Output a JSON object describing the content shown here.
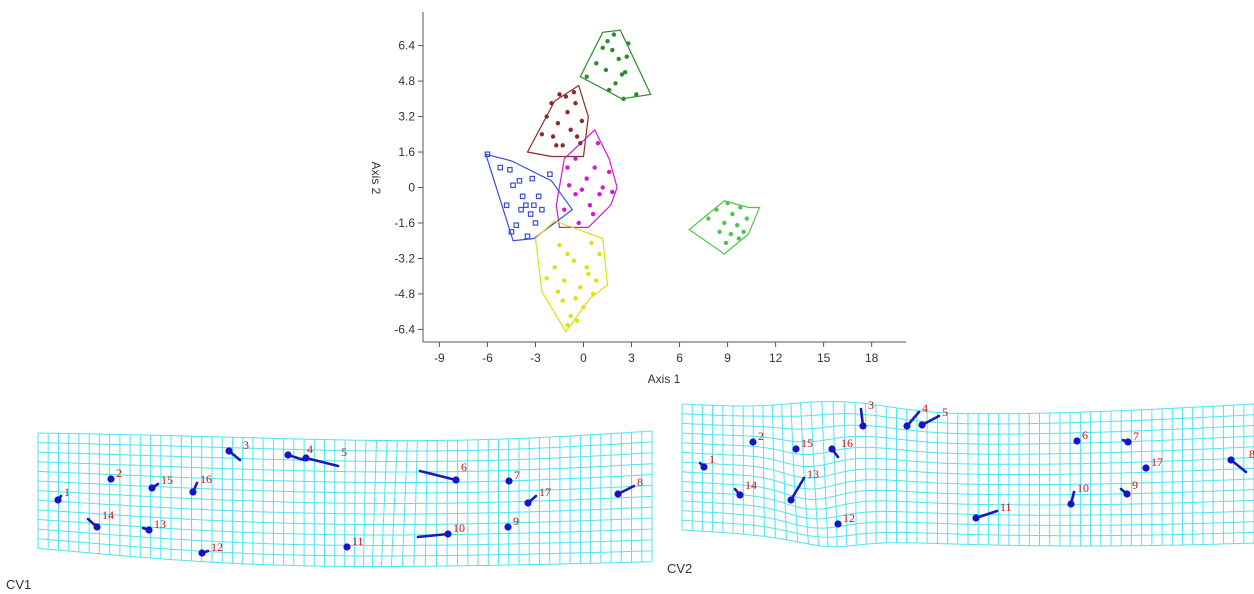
{
  "chart_data": [
    {
      "type": "scatter",
      "title": "",
      "xlabel": "Axis 1",
      "ylabel": "Axis 2",
      "xlim": [
        -10,
        20
      ],
      "ylim": [
        -7.2,
        7.8
      ],
      "xticks": [
        -9,
        -6,
        -3,
        0,
        3,
        6,
        9,
        12,
        15,
        18
      ],
      "yticks": [
        -6.4,
        -4.8,
        -3.2,
        -1.6,
        0,
        1.6,
        3.2,
        4.8,
        6.4
      ],
      "xtick_labels": [
        "-9",
        "-6",
        "-3",
        "0",
        "3",
        "6",
        "9",
        "12",
        "15",
        "18"
      ],
      "ytick_labels": [
        "-6.4",
        "-4.8",
        "-3.2",
        "-1.6",
        "0",
        "1.6",
        "3.2",
        "4.8",
        "6.4"
      ],
      "grid": false,
      "convex_hulls": true,
      "series": [
        {
          "color": "#2e8b2e",
          "marker": "circle",
          "points": [
            [
              0.2,
              5.0
            ],
            [
              0.8,
              5.6
            ],
            [
              1.2,
              6.3
            ],
            [
              1.5,
              6.6
            ],
            [
              1.8,
              6.2
            ],
            [
              2.2,
              5.8
            ],
            [
              1.4,
              5.3
            ],
            [
              2.6,
              5.2
            ],
            [
              2.8,
              6.5
            ],
            [
              1.9,
              6.9
            ],
            [
              2.4,
              5.1
            ],
            [
              2.0,
              4.7
            ],
            [
              1.6,
              4.4
            ],
            [
              2.5,
              4.0
            ],
            [
              3.3,
              4.2
            ],
            [
              2.7,
              5.9
            ]
          ],
          "hull": [
            [
              -0.2,
              5.0
            ],
            [
              1.2,
              7.0
            ],
            [
              2.3,
              7.1
            ],
            [
              4.2,
              4.2
            ],
            [
              2.4,
              4.0
            ]
          ]
        },
        {
          "color": "#8b2b2b",
          "marker": "circle",
          "points": [
            [
              -2.0,
              3.8
            ],
            [
              -1.5,
              4.2
            ],
            [
              -1.0,
              3.4
            ],
            [
              -0.8,
              2.6
            ],
            [
              -1.6,
              2.9
            ],
            [
              -0.4,
              2.3
            ],
            [
              -1.9,
              2.3
            ],
            [
              -1.3,
              1.9
            ],
            [
              -0.1,
              3.0
            ],
            [
              -0.6,
              4.3
            ],
            [
              -2.3,
              3.2
            ],
            [
              -0.2,
              2.0
            ],
            [
              -1.1,
              4.1
            ],
            [
              -0.5,
              3.8
            ],
            [
              -1.7,
              1.9
            ],
            [
              -2.6,
              2.4
            ]
          ],
          "hull": [
            [
              -3.5,
              1.6
            ],
            [
              -1.8,
              3.9
            ],
            [
              -0.3,
              4.6
            ],
            [
              0.3,
              3.2
            ],
            [
              0.0,
              1.4
            ],
            [
              -2.0,
              1.4
            ]
          ]
        },
        {
          "color": "#d418d4",
          "marker": "circle",
          "points": [
            [
              -1.0,
              0.9
            ],
            [
              -0.5,
              1.3
            ],
            [
              0.2,
              0.4
            ],
            [
              0.7,
              0.9
            ],
            [
              1.2,
              0.0
            ],
            [
              1.0,
              -0.3
            ],
            [
              0.4,
              -0.8
            ],
            [
              -0.5,
              -0.3
            ],
            [
              -0.9,
              0.1
            ],
            [
              -1.2,
              -1.0
            ],
            [
              -0.3,
              -1.6
            ],
            [
              0.6,
              -1.2
            ],
            [
              1.8,
              -0.2
            ],
            [
              1.6,
              0.7
            ],
            [
              -0.1,
              -0.1
            ],
            [
              0.9,
              2.0
            ]
          ],
          "hull": [
            [
              -1.2,
              1.3
            ],
            [
              0.7,
              2.6
            ],
            [
              1.6,
              1.3
            ],
            [
              2.1,
              0.0
            ],
            [
              1.7,
              -0.8
            ],
            [
              0.3,
              -1.8
            ],
            [
              -1.5,
              -1.8
            ],
            [
              -1.7,
              -0.8
            ]
          ]
        },
        {
          "color": "#3a4fd4",
          "marker": "square",
          "points": [
            [
              -6.0,
              1.5
            ],
            [
              -5.2,
              0.9
            ],
            [
              -4.6,
              0.8
            ],
            [
              -4.4,
              0.1
            ],
            [
              -4.0,
              0.3
            ],
            [
              -3.8,
              -0.4
            ],
            [
              -3.6,
              -0.8
            ],
            [
              -3.9,
              -1.0
            ],
            [
              -3.3,
              -1.2
            ],
            [
              -2.8,
              -0.4
            ],
            [
              -3.0,
              -1.6
            ],
            [
              -4.2,
              -1.7
            ],
            [
              -4.5,
              -2.0
            ],
            [
              -3.5,
              -2.2
            ],
            [
              -3.2,
              0.4
            ],
            [
              -2.6,
              -1.0
            ],
            [
              -4.8,
              -0.8
            ],
            [
              -2.1,
              0.6
            ],
            [
              -3.1,
              -0.8
            ]
          ],
          "hull": [
            [
              -6.1,
              1.5
            ],
            [
              -4.5,
              1.2
            ],
            [
              -2.0,
              0.3
            ],
            [
              -0.7,
              -1.0
            ],
            [
              -3.1,
              -2.3
            ],
            [
              -4.4,
              -2.4
            ]
          ]
        },
        {
          "color": "#e0e00e",
          "marker": "circle",
          "points": [
            [
              -1.5,
              -2.6
            ],
            [
              -1.0,
              -3.0
            ],
            [
              -0.6,
              -3.3
            ],
            [
              0.2,
              -3.6
            ],
            [
              0.5,
              -2.5
            ],
            [
              1.0,
              -3.0
            ],
            [
              0.8,
              -4.2
            ],
            [
              -0.2,
              -4.5
            ],
            [
              -1.2,
              -4.2
            ],
            [
              -1.8,
              -3.6
            ],
            [
              -0.5,
              -5.0
            ],
            [
              -1.3,
              -5.1
            ],
            [
              0.0,
              -5.4
            ],
            [
              -0.8,
              -5.8
            ],
            [
              0.6,
              -4.8
            ],
            [
              -1.6,
              -4.7
            ],
            [
              -0.4,
              -6.0
            ],
            [
              -1.0,
              -6.2
            ],
            [
              0.3,
              -3.9
            ],
            [
              -2.3,
              -4.1
            ]
          ],
          "hull": [
            [
              -3.0,
              -2.3
            ],
            [
              -1.8,
              -1.5
            ],
            [
              1.2,
              -2.3
            ],
            [
              1.5,
              -4.4
            ],
            [
              0.4,
              -5.0
            ],
            [
              -1.1,
              -6.5
            ],
            [
              -2.6,
              -4.7
            ]
          ]
        },
        {
          "color": "#4fc44f",
          "marker": "circle",
          "points": [
            [
              7.8,
              -1.4
            ],
            [
              8.3,
              -1.0
            ],
            [
              8.8,
              -1.6
            ],
            [
              9.3,
              -1.2
            ],
            [
              9.8,
              -0.9
            ],
            [
              9.6,
              -1.7
            ],
            [
              9.2,
              -2.1
            ],
            [
              8.5,
              -2.0
            ],
            [
              10.2,
              -1.4
            ],
            [
              9.0,
              -0.7
            ],
            [
              8.9,
              -2.5
            ],
            [
              9.7,
              -2.3
            ],
            [
              10.0,
              -2.0
            ]
          ],
          "hull": [
            [
              6.6,
              -1.9
            ],
            [
              8.8,
              -0.6
            ],
            [
              10.3,
              -0.9
            ],
            [
              11.0,
              -0.9
            ],
            [
              10.3,
              -2.1
            ],
            [
              8.8,
              -3.0
            ]
          ]
        }
      ]
    },
    {
      "type": "deformation-grid",
      "title": "CV1",
      "landmarks": [
        {
          "label": "1",
          "x": 58,
          "y": 500,
          "dx": 3,
          "dy": -4
        },
        {
          "label": "2",
          "x": 111,
          "y": 479,
          "dx": 0,
          "dy": 0
        },
        {
          "label": "3",
          "x": 229,
          "y": 451,
          "dx": 11,
          "dy": 9
        },
        {
          "label": "4",
          "x": 288,
          "y": 455,
          "dx": 16,
          "dy": 5
        },
        {
          "label": "5",
          "x": 306,
          "y": 458,
          "dx": 32,
          "dy": 8
        },
        {
          "label": "6",
          "x": 456,
          "y": 480,
          "dx": -36,
          "dy": -9
        },
        {
          "label": "7",
          "x": 509,
          "y": 481,
          "dx": 0,
          "dy": 0
        },
        {
          "label": "8",
          "x": 618,
          "y": 494,
          "dx": 16,
          "dy": -8
        },
        {
          "label": "9",
          "x": 508,
          "y": 527,
          "dx": 0,
          "dy": 0
        },
        {
          "label": "10",
          "x": 448,
          "y": 534,
          "dx": -30,
          "dy": 3
        },
        {
          "label": "11",
          "x": 347,
          "y": 547,
          "dx": 0,
          "dy": 0
        },
        {
          "label": "12",
          "x": 202,
          "y": 553,
          "dx": 6,
          "dy": -2
        },
        {
          "label": "13",
          "x": 149,
          "y": 530,
          "dx": -6,
          "dy": -2
        },
        {
          "label": "14",
          "x": 97,
          "y": 527,
          "dx": -9,
          "dy": -8
        },
        {
          "label": "15",
          "x": 152,
          "y": 488,
          "dx": 6,
          "dy": -4
        },
        {
          "label": "16",
          "x": 193,
          "y": 492,
          "dx": 4,
          "dy": -9
        },
        {
          "label": "17",
          "x": 528,
          "y": 503,
          "dx": 8,
          "dy": -7
        }
      ]
    },
    {
      "type": "deformation-grid",
      "title": "CV2",
      "landmarks": [
        {
          "label": "1",
          "x": 704,
          "y": 467,
          "dx": -4,
          "dy": -4
        },
        {
          "label": "2",
          "x": 753,
          "y": 442,
          "dx": 0,
          "dy": 0
        },
        {
          "label": "3",
          "x": 863,
          "y": 426,
          "dx": -2,
          "dy": -17
        },
        {
          "label": "4",
          "x": 907,
          "y": 426,
          "dx": 12,
          "dy": -14
        },
        {
          "label": "5",
          "x": 922,
          "y": 425,
          "dx": 17,
          "dy": -9
        },
        {
          "label": "6",
          "x": 1077,
          "y": 441,
          "dx": 0,
          "dy": 0
        },
        {
          "label": "7",
          "x": 1128,
          "y": 442,
          "dx": -5,
          "dy": -2
        },
        {
          "label": "8",
          "x": 1231,
          "y": 460,
          "dx": 15,
          "dy": 12
        },
        {
          "label": "9",
          "x": 1127,
          "y": 494,
          "dx": -6,
          "dy": -5
        },
        {
          "label": "10",
          "x": 1071,
          "y": 504,
          "dx": 3,
          "dy": -12
        },
        {
          "label": "11",
          "x": 976,
          "y": 518,
          "dx": 21,
          "dy": -7
        },
        {
          "label": "12",
          "x": 838,
          "y": 524,
          "dx": 0,
          "dy": 0
        },
        {
          "label": "13",
          "x": 791,
          "y": 500,
          "dx": 13,
          "dy": -22
        },
        {
          "label": "14",
          "x": 740,
          "y": 495,
          "dx": -5,
          "dy": -6
        },
        {
          "label": "15",
          "x": 796,
          "y": 449,
          "dx": 0,
          "dy": 0
        },
        {
          "label": "16",
          "x": 832,
          "y": 449,
          "dx": 6,
          "dy": 8
        },
        {
          "label": "17",
          "x": 1146,
          "y": 468,
          "dx": 0,
          "dy": 0
        }
      ]
    }
  ],
  "colors": {
    "grid": "#4fe4ef",
    "landmark": "#1414c8",
    "landmark_label": "#cc1111",
    "axis": "#555555"
  }
}
